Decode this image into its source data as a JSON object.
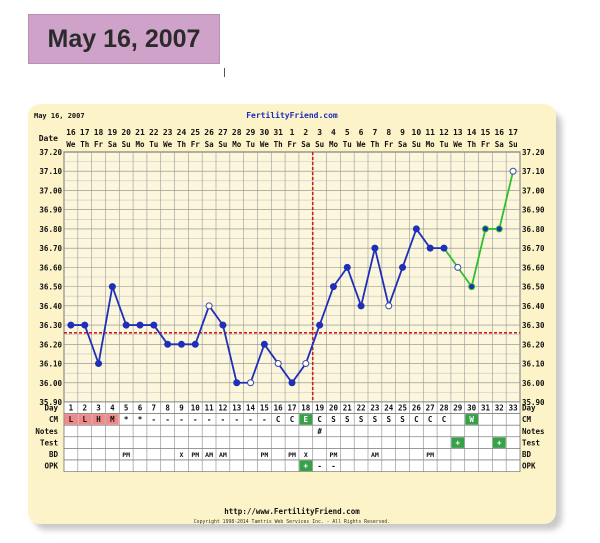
{
  "header": {
    "title": "May 16, 2007"
  },
  "chart_data": {
    "type": "line",
    "date_label": "May 16, 2007",
    "site_name": "FertilityFriend.com",
    "footer_url": "http://www.FertilityFriend.com",
    "copyright": "Copyright 1998-2014 Tamtris Web Services Inc. - All Rights Reserved.",
    "ylim": [
      35.9,
      37.2
    ],
    "yticks": [
      "37.20",
      "37.10",
      "37.00",
      "36.90",
      "36.80",
      "36.70",
      "36.60",
      "36.50",
      "36.40",
      "36.30",
      "36.20",
      "36.10",
      "36.00",
      "35.90"
    ],
    "dates": [
      "16",
      "17",
      "18",
      "19",
      "20",
      "21",
      "22",
      "23",
      "24",
      "25",
      "26",
      "27",
      "28",
      "29",
      "30",
      "31",
      "1",
      "2",
      "3",
      "4",
      "5",
      "6",
      "7",
      "8",
      "9",
      "10",
      "11",
      "12",
      "13",
      "14",
      "15",
      "16",
      "17"
    ],
    "weekdays": [
      "We",
      "Th",
      "Fr",
      "Sa",
      "Su",
      "Mo",
      "Tu",
      "We",
      "Th",
      "Fr",
      "Sa",
      "Su",
      "Mo",
      "Tu",
      "We",
      "Th",
      "Fr",
      "Sa",
      "Su",
      "Mo",
      "Tu",
      "We",
      "Th",
      "Fr",
      "Sa",
      "Su",
      "Mo",
      "Tu",
      "We",
      "Th",
      "Fr",
      "Sa",
      "Su"
    ],
    "days": [
      "1",
      "2",
      "3",
      "4",
      "5",
      "6",
      "7",
      "8",
      "9",
      "10",
      "11",
      "12",
      "13",
      "14",
      "15",
      "16",
      "17",
      "18",
      "19",
      "20",
      "21",
      "22",
      "23",
      "24",
      "25",
      "26",
      "27",
      "28",
      "29",
      "30",
      "31",
      "32",
      "33"
    ],
    "temps": [
      36.3,
      36.3,
      36.1,
      36.5,
      36.3,
      36.3,
      36.3,
      36.2,
      36.2,
      36.2,
      36.4,
      36.3,
      36.0,
      36.0,
      36.2,
      36.1,
      36.0,
      36.1,
      36.3,
      36.5,
      36.6,
      36.4,
      36.7,
      36.4,
      36.6,
      36.8,
      36.7,
      36.7,
      36.6,
      36.5,
      36.8,
      36.8,
      37.1
    ],
    "open_points": [
      11,
      14,
      16,
      18,
      24,
      29,
      33
    ],
    "green_from_day": 28,
    "coverline": 36.26,
    "ovulation_day": 18,
    "line_color": "#1f2fb8",
    "line_color_recent": "#2fbf2f",
    "coverline_color": "#cc1e1e",
    "rows": {
      "labels": [
        "Day",
        "CM",
        "Notes",
        "Test",
        "BD",
        "OPK"
      ],
      "cm": [
        "L",
        "L",
        "H",
        "M",
        "*",
        "*",
        "-",
        "-",
        "-",
        "-",
        "-",
        "-",
        "-",
        "-",
        "-",
        "C",
        "C",
        "E",
        "C",
        "S",
        "S",
        "S",
        "S",
        "S",
        "S",
        "C",
        "C",
        "C",
        "",
        "W",
        "",
        "",
        ""
      ],
      "cm_pink_days": [
        1,
        2,
        3,
        4
      ],
      "cm_green_days": [
        18,
        30
      ],
      "notes": [
        "",
        "",
        "",
        "",
        "",
        "",
        "",
        "",
        "",
        "",
        "",
        "",
        "",
        "",
        "",
        "",
        "",
        "",
        "#",
        "",
        "",
        "",
        "",
        "",
        "",
        "",
        "",
        "",
        "",
        "",
        "",
        "",
        ""
      ],
      "test": [
        "",
        "",
        "",
        "",
        "",
        "",
        "",
        "",
        "",
        "",
        "",
        "",
        "",
        "",
        "",
        "",
        "",
        "",
        "",
        "",
        "",
        "",
        "",
        "",
        "",
        "",
        "",
        "",
        "+",
        "",
        "",
        "+",
        ""
      ],
      "test_green_days": [
        29,
        32
      ],
      "bd": [
        "",
        "",
        "",
        "",
        "PM",
        "",
        "",
        "",
        "X",
        "PM",
        "AM",
        "AM",
        "",
        "",
        "PM",
        "",
        "PM",
        "X",
        "",
        "PM",
        "",
        "",
        "AM",
        "",
        "",
        "",
        "PM",
        "",
        "",
        "",
        "",
        "",
        ""
      ],
      "opk": [
        "",
        "",
        "",
        "",
        "",
        "",
        "",
        "",
        "",
        "",
        "",
        "",
        "",
        "",
        "",
        "",
        "",
        "+",
        "-",
        "-",
        "",
        "",
        "",
        "",
        "",
        "",
        "",
        "",
        "",
        "",
        "",
        "",
        ""
      ],
      "opk_green_days": [
        18
      ]
    }
  }
}
